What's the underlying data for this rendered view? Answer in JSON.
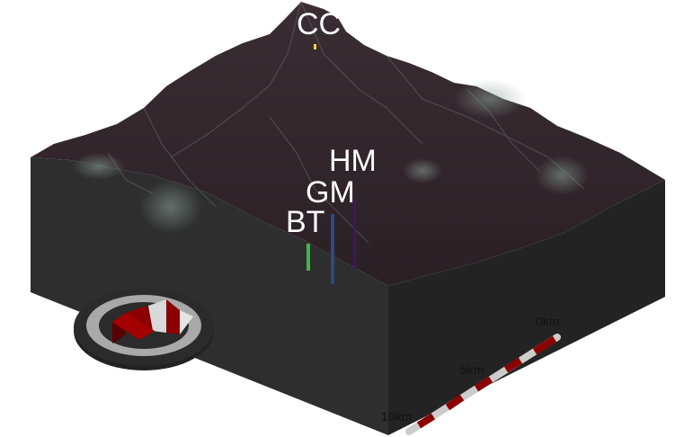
{
  "markers": {
    "cc": {
      "label": "CC",
      "color": "#f4d23a"
    },
    "hm": {
      "label": "HM",
      "color": "#3a1a5c"
    },
    "gm": {
      "label": "GM",
      "color": "#34487e"
    },
    "bt": {
      "label": "BT",
      "color": "#4caf50"
    }
  },
  "scalebar": {
    "zero_label": "0km",
    "mid_label": "5km",
    "end_label": "10km",
    "colors": {
      "dark": "#8b0000",
      "light": "#cccccc"
    }
  },
  "terrain": {
    "surface_color": "#2f2428",
    "side_color": "#2b2b2b",
    "highlight_color": "#6f7f78"
  },
  "north_arrow": {
    "ring_dark": "#2b2b2b",
    "ring_light": "#a9a9a9",
    "letter_color": "#8b0000"
  }
}
